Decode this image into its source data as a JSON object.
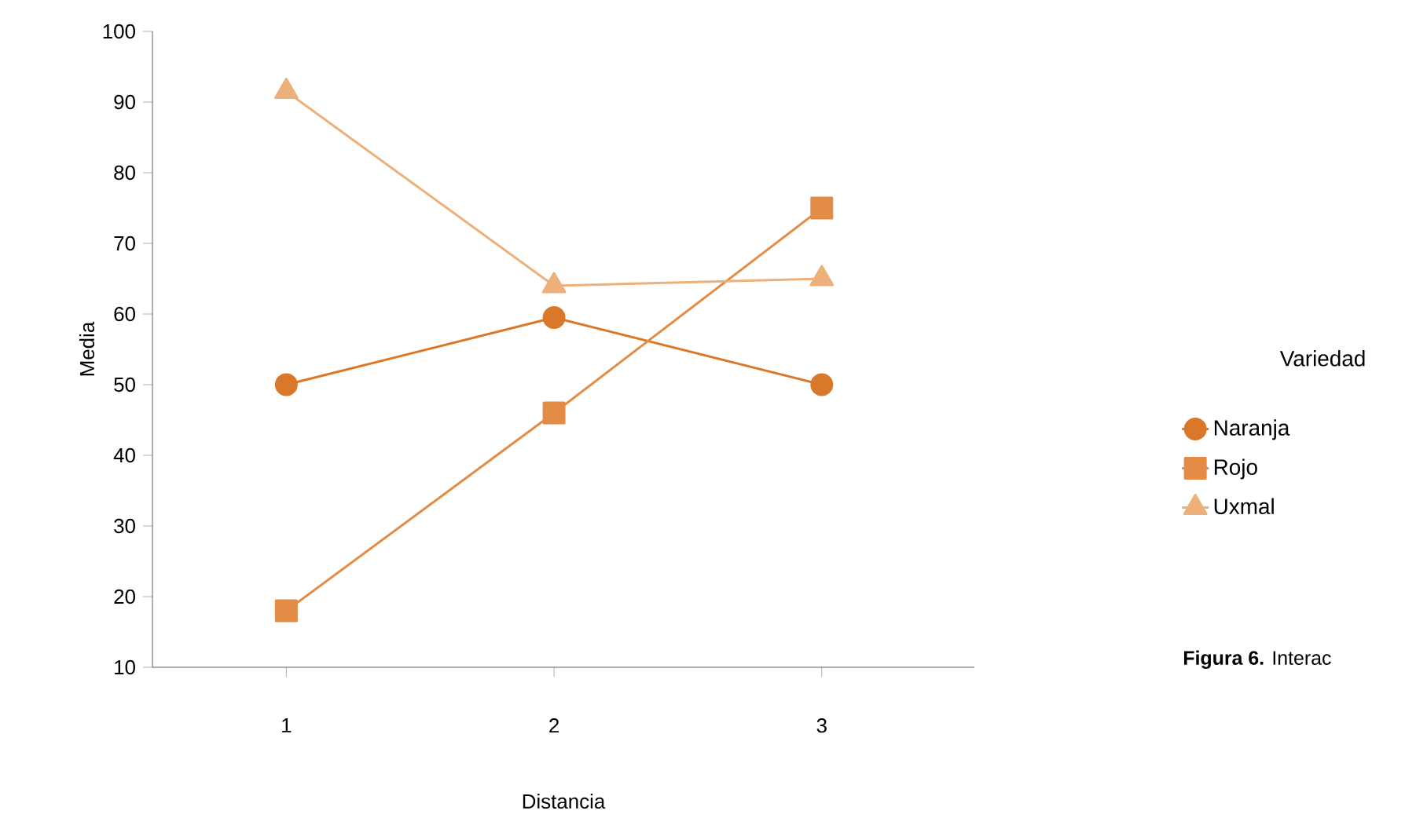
{
  "chart_data": {
    "type": "line",
    "xlabel": "Distancia",
    "ylabel": "Media",
    "legend_title": "Variedad",
    "legend": "right",
    "x": [
      1,
      2,
      3
    ],
    "series": [
      {
        "name": "Naranja",
        "color": "#d9782a",
        "marker": "circle",
        "values": [
          50,
          59.5,
          50
        ]
      },
      {
        "name": "Rojo",
        "color": "#e38c45",
        "marker": "square",
        "values": [
          18,
          46,
          75
        ]
      },
      {
        "name": "Uxmal",
        "color": "#eeb07a",
        "marker": "triangle",
        "values": [
          91.5,
          64,
          65
        ]
      }
    ],
    "xlim": [
      0.5,
      3.57
    ],
    "ylim": [
      10,
      100
    ],
    "xticks": [
      1,
      2,
      3
    ],
    "yticks": [
      10,
      20,
      30,
      40,
      50,
      60,
      70,
      80,
      90,
      100
    ],
    "annotations": [
      "**Figura 6.** Interac"
    ]
  }
}
